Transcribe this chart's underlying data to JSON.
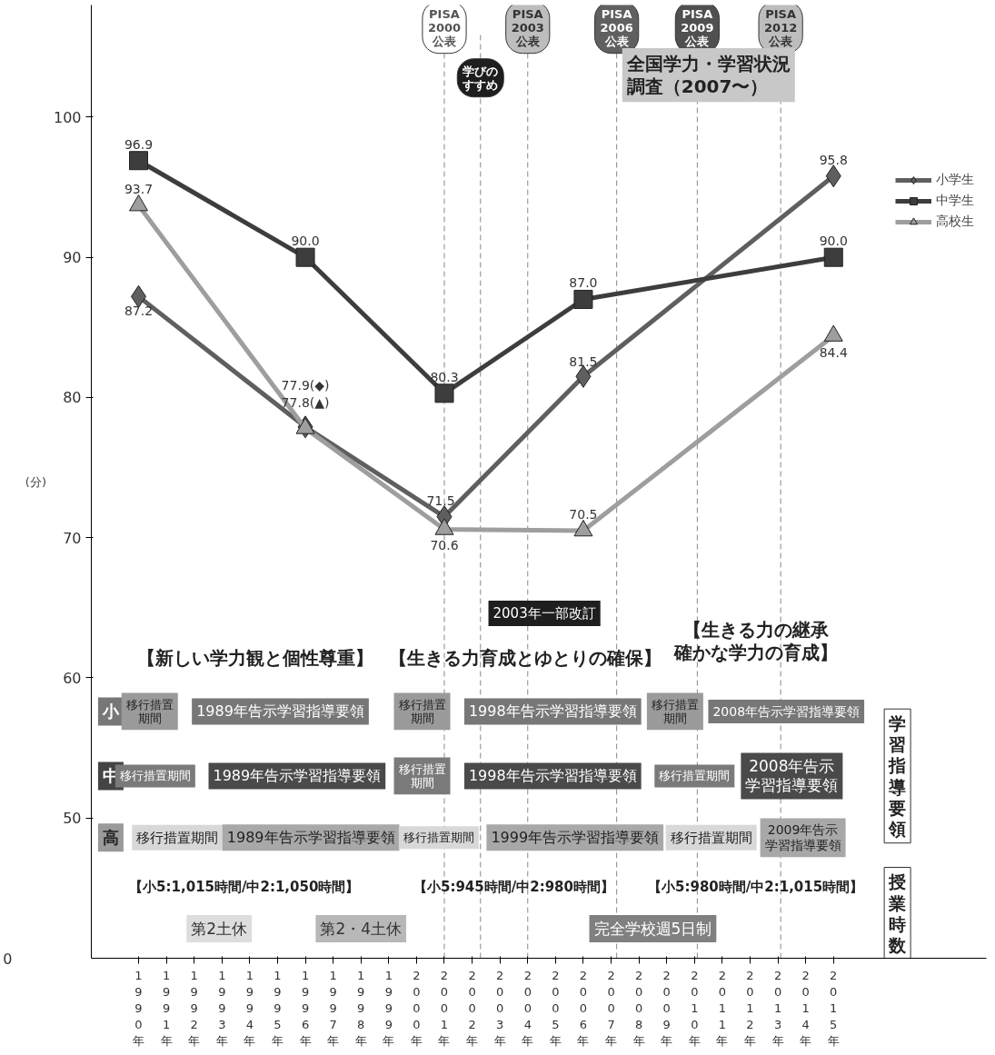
{
  "chart_data": {
    "type": "line",
    "ylabel": "(分)",
    "x": [
      1990,
      1996,
      2001,
      2006,
      2015
    ],
    "xlim": [
      1988.3,
      2020.5
    ],
    "xticks": [
      {
        "value": 1990,
        "label": "1990年"
      },
      {
        "value": 1991,
        "label": "1991年"
      },
      {
        "value": 1992,
        "label": "1992年"
      },
      {
        "value": 1993,
        "label": "1993年"
      },
      {
        "value": 1994,
        "label": "1994年"
      },
      {
        "value": 1995,
        "label": "1995年"
      },
      {
        "value": 1996,
        "label": "1996年"
      },
      {
        "value": 1997,
        "label": "1997年"
      },
      {
        "value": 1998,
        "label": "1998年"
      },
      {
        "value": 1999,
        "label": "1999年"
      },
      {
        "value": 2000,
        "label": "2000年"
      },
      {
        "value": 2001,
        "label": "2001年"
      },
      {
        "value": 2002,
        "label": "2002年"
      },
      {
        "value": 2003,
        "label": "2003年"
      },
      {
        "value": 2004,
        "label": "2004年"
      },
      {
        "value": 2005,
        "label": "2005年"
      },
      {
        "value": 2006,
        "label": "2006年"
      },
      {
        "value": 2007,
        "label": "2007年"
      },
      {
        "value": 2008,
        "label": "2008年"
      },
      {
        "value": 2009,
        "label": "2009年"
      },
      {
        "value": 2010,
        "label": "2010年"
      },
      {
        "value": 2011,
        "label": "2011年"
      },
      {
        "value": 2012,
        "label": "2012年"
      },
      {
        "value": 2013,
        "label": "2013年"
      },
      {
        "value": 2014,
        "label": "2014年"
      },
      {
        "value": 2015,
        "label": "2015年"
      }
    ],
    "ylim": [
      40,
      108
    ],
    "yticks": [
      50,
      60,
      70,
      80,
      90,
      100
    ],
    "series": [
      {
        "name": "小学生",
        "color": "#5f5f5f",
        "marker": "diamond",
        "values": [
          87.2,
          77.9,
          71.5,
          81.5,
          95.8
        ],
        "value_labels": [
          "87.2",
          "77.9(◆)",
          "71.5",
          "81.5",
          "95.8"
        ]
      },
      {
        "name": "中学生",
        "color": "#3d3d3d",
        "marker": "square",
        "values": [
          96.9,
          90.0,
          80.3,
          87.0,
          90.0
        ],
        "value_labels": [
          "96.9",
          "90.0",
          "80.3",
          "87.0",
          "90.0"
        ]
      },
      {
        "name": "高校生",
        "color": "#9e9e9e",
        "marker": "triangle",
        "values": [
          93.7,
          77.8,
          70.6,
          70.5,
          84.4
        ],
        "value_labels": [
          "93.7",
          "77.8(▲)",
          "70.6",
          "70.5",
          "84.4"
        ]
      }
    ],
    "legend": "right",
    "grid": false,
    "line_style": "solid",
    "ref_lines": [
      {
        "axis": "x",
        "value": 2001,
        "label": "PISA\n2000\n公表",
        "line_style": "dashed"
      },
      {
        "axis": "x",
        "value": 2002.3,
        "label": "学びのすすめ",
        "line_style": "dashed"
      },
      {
        "axis": "x",
        "value": 2004,
        "label": "PISA\n2003\n公表",
        "line_style": "dashed"
      },
      {
        "axis": "x",
        "value": 2007.2,
        "label": "PISA\n2006\n公表",
        "line_style": "dashed"
      },
      {
        "axis": "x",
        "value": 2010.1,
        "label": "PISA\n2009\n公表",
        "line_style": "dashed"
      },
      {
        "axis": "x",
        "value": 2013.1,
        "label": "PISA\n2012\n公表",
        "line_style": "dashed"
      }
    ],
    "annotations": [
      "全国学力・学習状況調査（2007〜）",
      "2003年一部改訂",
      "【新しい学力観と個性尊重】",
      "【生きる力育成とゆとりの確保】",
      "【生きる力の継承確かな学力の育成】",
      "小",
      "移行措置期間",
      "1989年告示学習指導要領",
      "移行措置期間",
      "1998年告示学習指導要領",
      "移行措置期間",
      "2008年告示学習指導要領",
      "中",
      "移行措置期間",
      "1989年告示学習指導要領",
      "移行措置期間",
      "1998年告示学習指導要領",
      "移行措置期間",
      "2008年告示学習指導要領",
      "高",
      "移行措置期間",
      "1989年告示学習指導要領",
      "移行措置期間",
      "1999年告示学習指導要領",
      "移行措置期間",
      "2009年告示学習指導要領",
      "学習指導要領",
      "【小5:1,015時間/中2:1,050時間】",
      "【小5:945時間/中2:980時間】",
      "【小5:980時間/中2:1,015時間】",
      "授業時数",
      "第2土休",
      "第2・4土休",
      "完全学校週5日制",
      "0"
    ]
  }
}
